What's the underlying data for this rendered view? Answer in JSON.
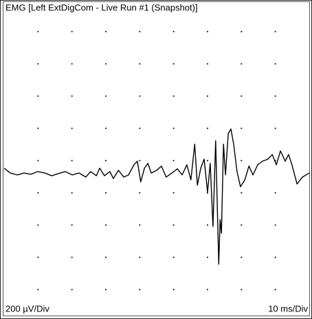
{
  "chart_data": {
    "type": "line",
    "title": "EMG [Left ExtDigCom - Live Run #1 (Snapshot)]",
    "y_scale_label": "200 µV/Div",
    "x_scale_label": "10 ms/Div",
    "color": "#000000",
    "grid": "dotted",
    "xlim": [
      0,
      90
    ],
    "ylim": [
      -940,
      911
    ],
    "xticks": [
      10,
      20,
      30,
      40,
      50,
      60,
      70,
      80
    ],
    "yticks": [
      -800,
      -600,
      -400,
      -200,
      0,
      200,
      400,
      600,
      800
    ],
    "x": [
      0,
      1.8,
      3.9,
      5.9,
      7.9,
      9.9,
      12.0,
      14.0,
      16.0,
      18.0,
      20.1,
      22.1,
      24.1,
      25.5,
      27.2,
      28.2,
      29.6,
      31.2,
      32.2,
      33.7,
      35.3,
      36.7,
      38.3,
      39.3,
      40.3,
      41.4,
      42.4,
      43.4,
      45.0,
      46.4,
      47.8,
      49.5,
      51.1,
      52.5,
      53.9,
      55.1,
      56.2,
      57.0,
      58.0,
      59.0,
      60.0,
      60.8,
      61.6,
      62.4,
      63.3,
      63.7,
      64.1,
      64.7,
      65.3,
      66.1,
      66.9,
      67.7,
      68.7,
      69.7,
      71.0,
      72.2,
      73.4,
      74.8,
      76.2,
      77.8,
      79.1,
      80.3,
      81.5,
      82.9,
      83.9,
      84.9,
      86.4,
      88.0,
      90.0
    ],
    "values": [
      -47,
      -77,
      -89,
      -77,
      -85,
      -68,
      -77,
      -94,
      -81,
      -68,
      -89,
      -77,
      -102,
      -68,
      -94,
      -47,
      -94,
      -68,
      -111,
      -60,
      -102,
      -89,
      -26,
      -4,
      -132,
      -47,
      -17,
      -77,
      -60,
      -34,
      -102,
      -77,
      -51,
      -89,
      -26,
      -119,
      102,
      -153,
      -47,
      9,
      -196,
      -17,
      -409,
      123,
      -643,
      -366,
      -451,
      102,
      -89,
      166,
      196,
      102,
      -68,
      -162,
      -119,
      -34,
      -89,
      -26,
      -4,
      9,
      38,
      -26,
      60,
      -4,
      38,
      -26,
      -145,
      -102,
      -77
    ]
  }
}
